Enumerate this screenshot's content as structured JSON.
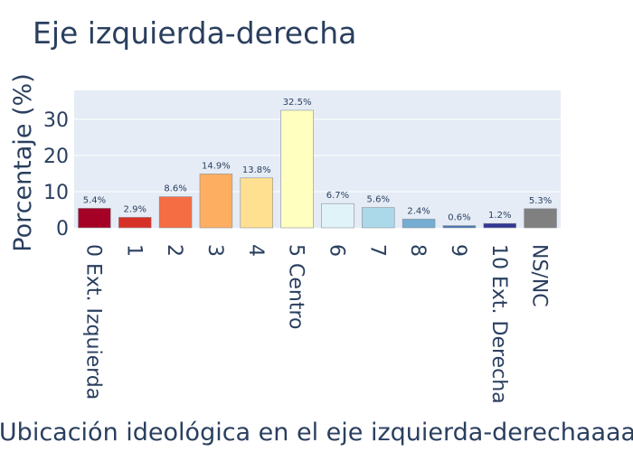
{
  "chart_data": {
    "type": "bar",
    "title": "Eje izquierda-derecha",
    "xlabel": "Ubicación ideológica en el eje izquierda-derechaaaa",
    "ylabel": "Porcentaje (%)",
    "ylim": [
      0,
      38
    ],
    "yticks": [
      "0",
      "10",
      "20",
      "30"
    ],
    "grid": true,
    "categories": [
      "0 Ext. Izquierda",
      "1",
      "2",
      "3",
      "4",
      "5 Centro",
      "6",
      "7",
      "8",
      "9",
      "10 Ext. Derecha",
      "NS/NC"
    ],
    "values": [
      5.4,
      2.9,
      8.6,
      14.9,
      13.8,
      32.5,
      6.7,
      5.6,
      2.4,
      0.6,
      1.2,
      5.3
    ],
    "value_labels": [
      "5.4%",
      "2.9%",
      "8.6%",
      "14.9%",
      "13.8%",
      "32.5%",
      "6.7%",
      "5.6%",
      "2.4%",
      "0.6%",
      "1.2%",
      "5.3%"
    ],
    "colors": [
      "#a50026",
      "#d73027",
      "#f46d43",
      "#fdae61",
      "#fee090",
      "#ffffbf",
      "#e0f3f8",
      "#abd9e9",
      "#74add1",
      "#4575b4",
      "#313695",
      "#808080"
    ],
    "plot_background": "#e5ecf6"
  }
}
